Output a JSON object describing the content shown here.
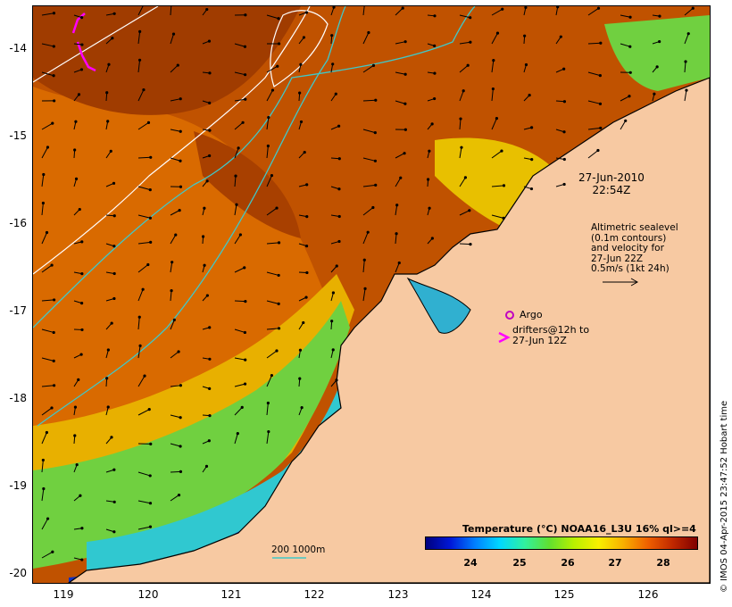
{
  "map": {
    "timestamp_date": "27-Jun-2010",
    "timestamp_time": "22:54Z",
    "altimetry_lines": [
      "Altimetric sealevel",
      "(0.1m contours)",
      "and velocity for",
      "27-Jun 22Z",
      "0.5m/s (1kt 24h)"
    ],
    "argo_label": "Argo",
    "drifters_lines": [
      "drifters@12h to",
      "27-Jun 12Z"
    ],
    "contour_legend": "200  1000m",
    "colorbar_title": "Temperature (°C) NOAA16_L3U 16% ql>=4",
    "colorbar_ticks": [
      "24",
      "25",
      "26",
      "27",
      "28"
    ],
    "credit": "© IMOS 04-Apr-2015 23:47:52 Hobart time",
    "lat_ticks": [
      "-14",
      "-15",
      "-16",
      "-17",
      "-18",
      "-19",
      "-20"
    ],
    "lon_ticks": [
      "119",
      "120",
      "121",
      "122",
      "123",
      "124",
      "125",
      "126"
    ],
    "colors": {
      "land": "#f7c9a2",
      "sst_warm": "#b84a00",
      "sst_mid": "#e07800",
      "sst_cool": "#f0d000",
      "sst_cold": "#40c0c0",
      "sst_coldest": "#0010a0",
      "contour_200m": "#40c8c8",
      "contour_1000m": "#ffffff",
      "drifter": "#ff00ff",
      "argo": "#c000c0"
    }
  }
}
